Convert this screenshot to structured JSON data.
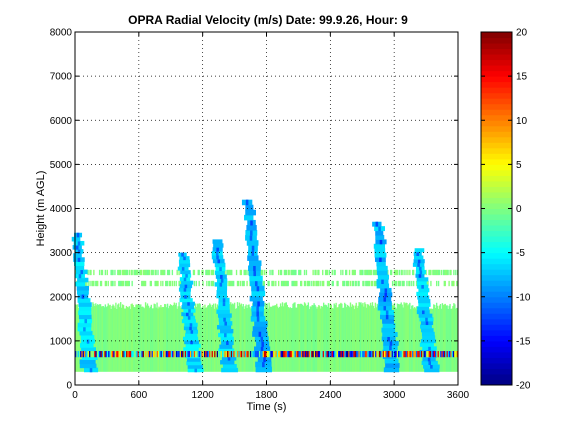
{
  "chart_data": {
    "type": "heatmap",
    "title": "OPRA Radial Velocity (m/s)  Date: 99.9.26, Hour: 9",
    "xlabel": "Time (s)",
    "ylabel": "Height (m AGL)",
    "xlim": [
      0,
      3600
    ],
    "ylim": [
      0,
      8000
    ],
    "xticks": [
      0,
      600,
      1200,
      1800,
      2400,
      3000,
      3600
    ],
    "yticks": [
      0,
      1000,
      2000,
      3000,
      4000,
      5000,
      6000,
      7000,
      8000
    ],
    "grid": true,
    "colorbar": {
      "colormap": "jet",
      "range": [
        -20,
        20
      ],
      "ticks": [
        -20,
        -15,
        -10,
        -5,
        0,
        5,
        10,
        15,
        20
      ]
    },
    "data_summary": {
      "background_velocity": 0,
      "background_top_height": 1800,
      "background_bottom_height": 300,
      "patch_layer_heights": [
        2300,
        2550
      ],
      "noisy_band_height": 700,
      "noisy_band_velocity_range": [
        -20,
        20
      ],
      "updraft_plumes": [
        {
          "time": 140,
          "top_height": 3450,
          "velocity": -5
        },
        {
          "time": 1120,
          "top_height": 3000,
          "velocity": -5
        },
        {
          "time": 1450,
          "top_height": 3300,
          "velocity": -5
        },
        {
          "time": 1780,
          "top_height": 4200,
          "velocity": -6
        },
        {
          "time": 2980,
          "top_height": 3700,
          "velocity": -6
        },
        {
          "time": 3340,
          "top_height": 3100,
          "velocity": -5
        }
      ]
    }
  }
}
